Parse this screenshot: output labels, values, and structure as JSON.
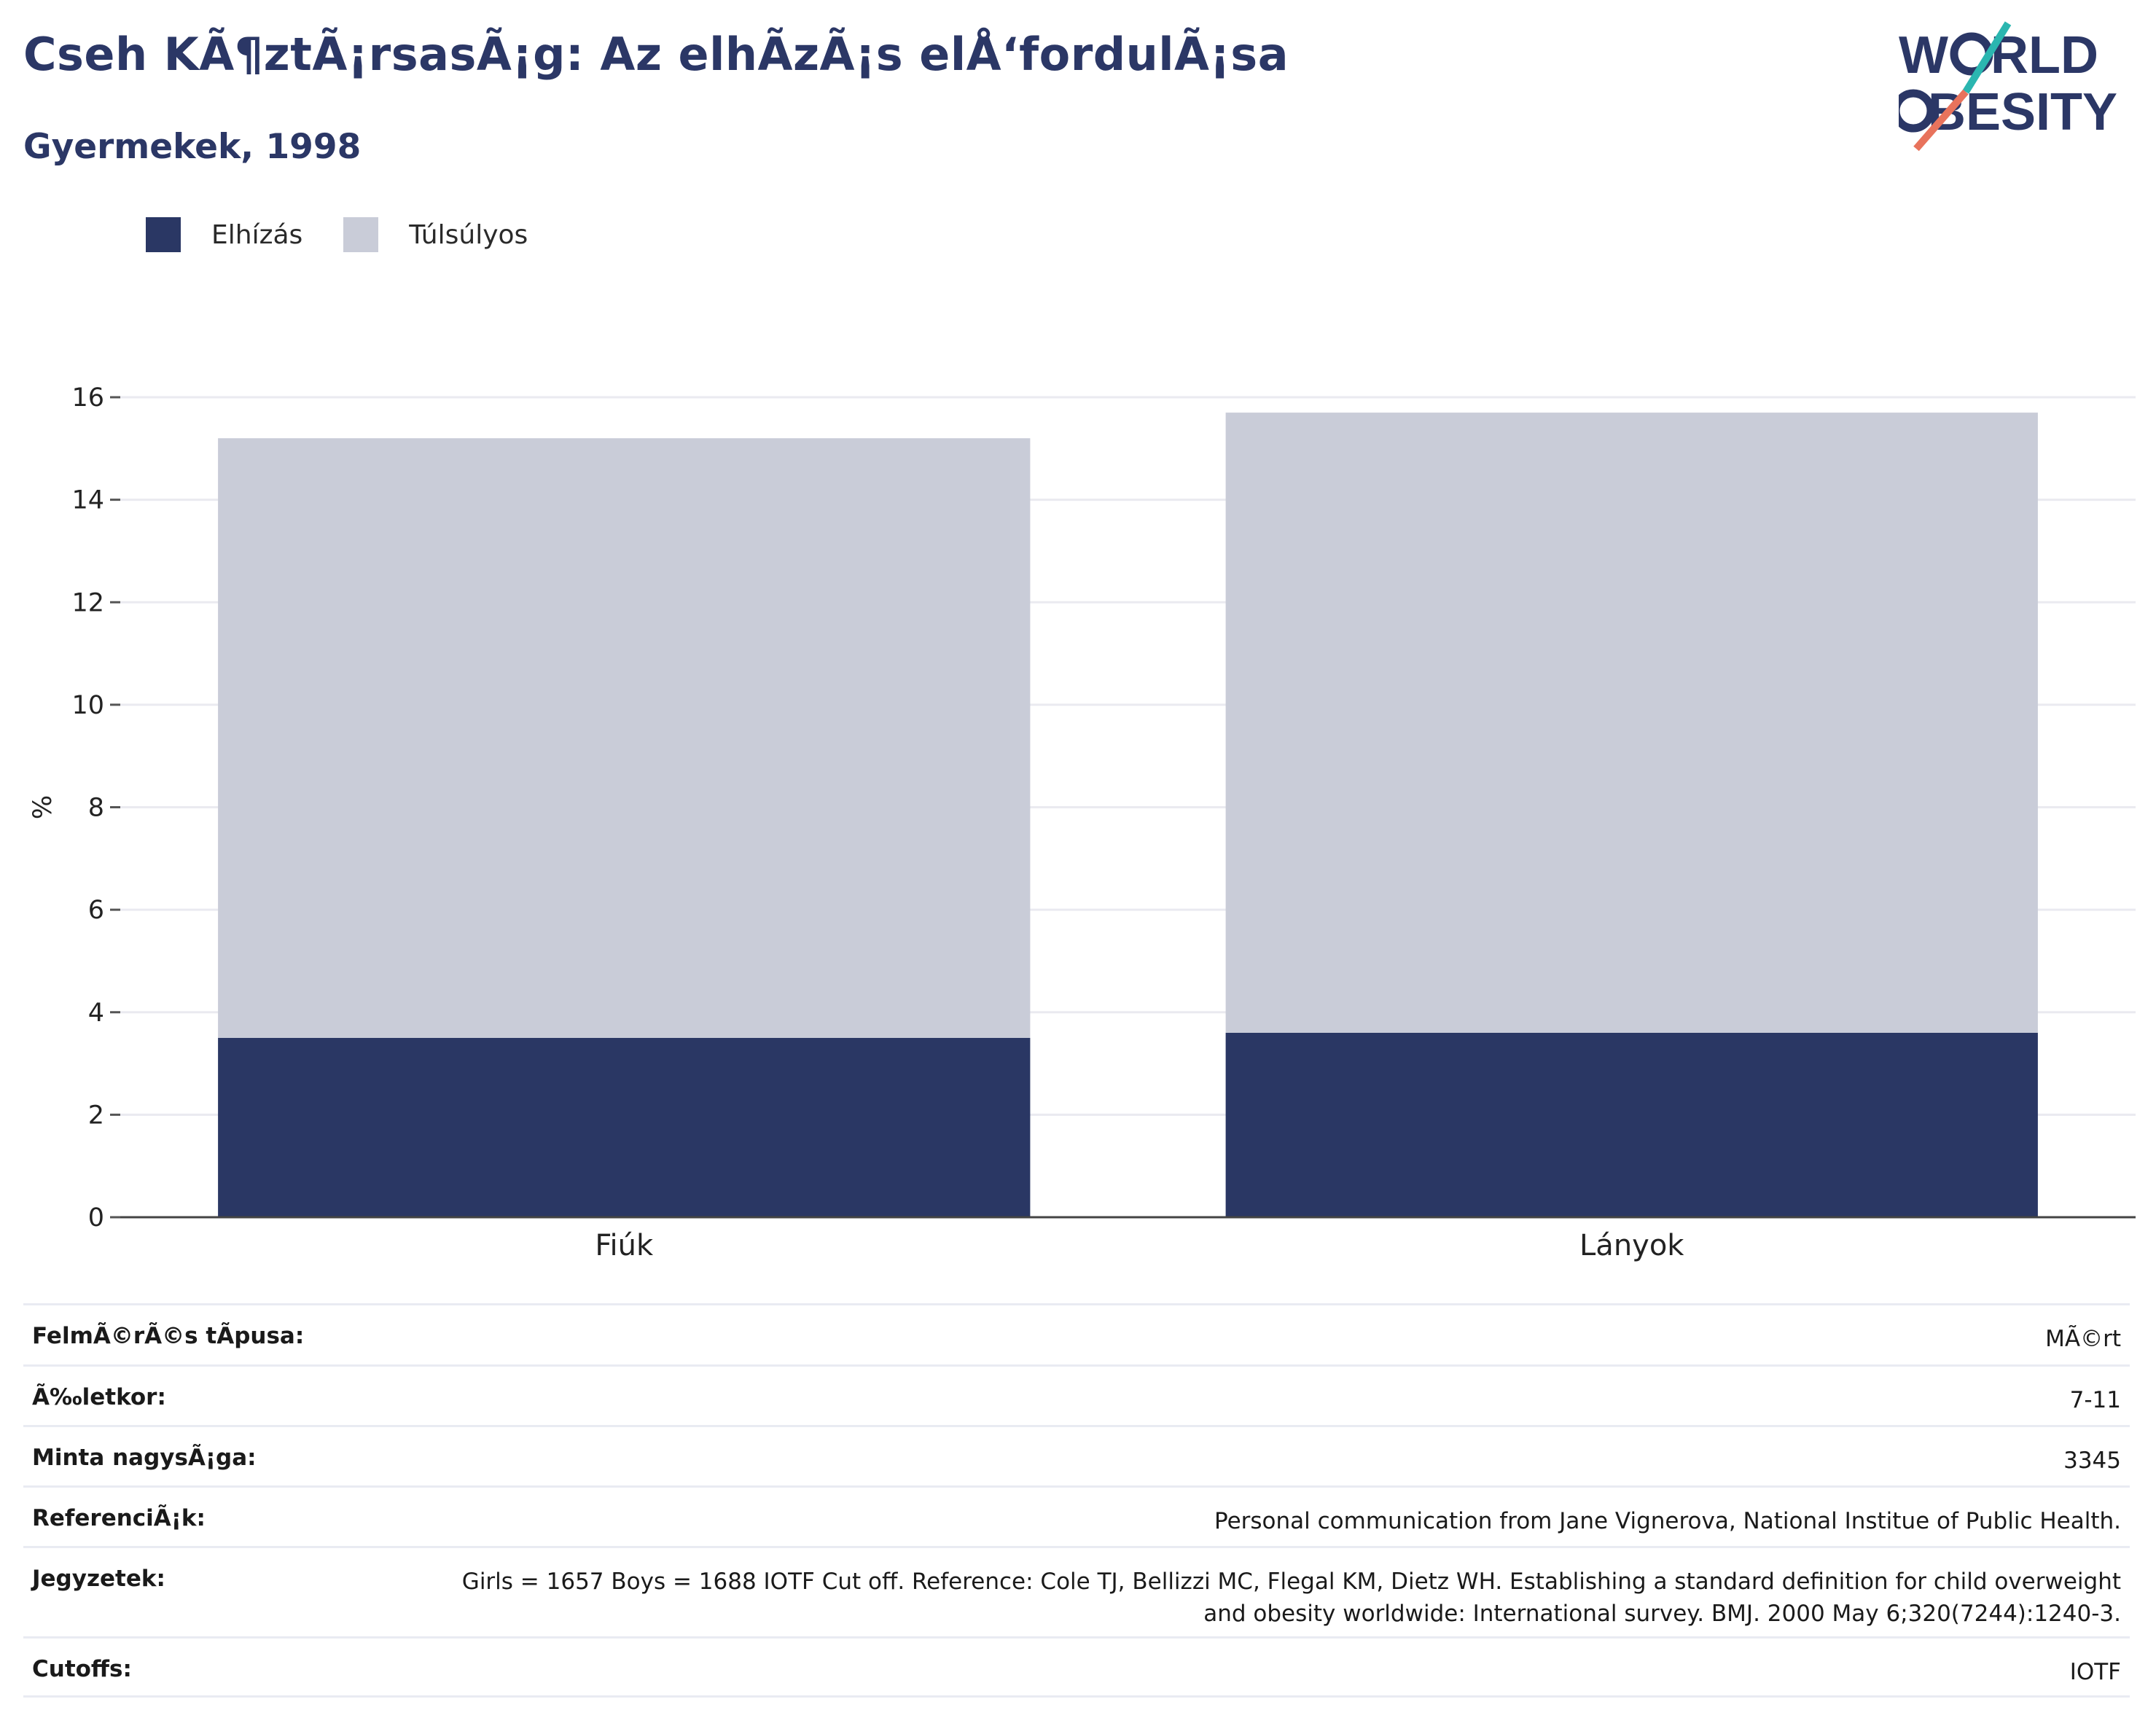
{
  "header": {
    "title": "Cseh KÃ¶ztÃ¡rsasÃ¡g: Az elhÃzÃ¡s elÅ‘fordulÃ¡sa",
    "subtitle": "Gyermekek, 1998",
    "logo_text": "WORLD OBESITY"
  },
  "legend": [
    {
      "label": "Elhízás",
      "color": "#2a3764"
    },
    {
      "label": "Túlsúlyos",
      "color": "#c9ccd8"
    }
  ],
  "chart_data": {
    "type": "bar",
    "stacked": true,
    "categories": [
      "Fiúk",
      "Lányok"
    ],
    "series": [
      {
        "name": "Elhízás",
        "color": "#2a3764",
        "values": [
          3.5,
          3.6
        ]
      },
      {
        "name": "Túlsúlyos",
        "color": "#c9ccd8",
        "values": [
          11.7,
          12.1
        ]
      }
    ],
    "totals": [
      15.2,
      15.7
    ],
    "ylabel": "%",
    "xlabel": "",
    "ylim": [
      0,
      16
    ],
    "yticks": [
      0,
      2,
      4,
      6,
      8,
      10,
      12,
      14,
      16
    ],
    "grid": true,
    "legend_position": "top-left"
  },
  "info_table": [
    {
      "label": "FelmÃ©rÃ©s tÃpusa:",
      "value": "MÃ©rt"
    },
    {
      "label": "Ã‰letkor:",
      "value": "7-11"
    },
    {
      "label": "Minta nagysÃ¡ga:",
      "value": "3345"
    },
    {
      "label": "ReferenciÃ¡k:",
      "value": "Personal communication from Jane Vignerova, National Institue of Public Health."
    },
    {
      "label": "Jegyzetek:",
      "value": "Girls = 1657 Boys = 1688 IOTF Cut off. Reference: Cole TJ, Bellizzi MC, Flegal KM, Dietz WH. Establishing a standard definition for child overweight and obesity worldwide: International survey. BMJ. 2000 May 6;320(7244):1240-3."
    },
    {
      "label": "Cutoffs:",
      "value": "IOTF"
    }
  ]
}
